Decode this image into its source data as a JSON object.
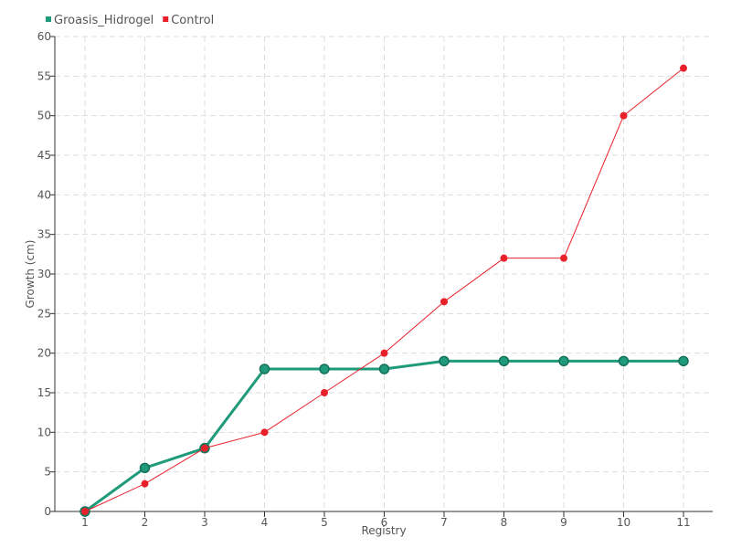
{
  "chart_data": {
    "type": "line",
    "categories": [
      "1",
      "2",
      "3",
      "4",
      "5",
      "6",
      "7",
      "8",
      "9",
      "10",
      "11"
    ],
    "series": [
      {
        "name": "Groasis_Hidrogel",
        "color": "#1f9a7a",
        "values": [
          0,
          5.5,
          8,
          18,
          18,
          18,
          19,
          19,
          19,
          19,
          19
        ]
      },
      {
        "name": "Control",
        "color": "#e8202a",
        "values": [
          0,
          3.5,
          8,
          10,
          15,
          20,
          26.5,
          32,
          32,
          50,
          56
        ]
      }
    ],
    "title": "",
    "xlabel": "Registry",
    "ylabel": "Growth (cm)",
    "ylim": [
      0,
      60
    ],
    "yticks": [
      0,
      5,
      10,
      15,
      20,
      25,
      30,
      35,
      40,
      45,
      50,
      55,
      60
    ],
    "grid": true,
    "legend_position": "top-left"
  }
}
